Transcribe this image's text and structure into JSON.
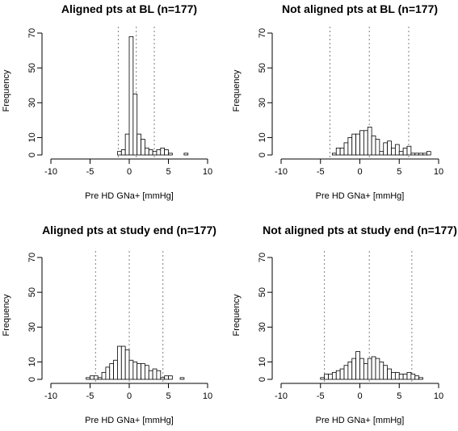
{
  "chart_data": [
    {
      "type": "bar",
      "title": "Aligned pts at BL (n=177)",
      "xlabel": "Pre HD GNa+ [mmHg]",
      "ylabel": "Frequency",
      "xlim": [
        -10,
        10
      ],
      "ylim": [
        0,
        70
      ],
      "xticks": [
        -10,
        -5,
        0,
        5,
        10
      ],
      "yticks": [
        0,
        10,
        30,
        50,
        70
      ],
      "grid": false,
      "bin_width": 0.5,
      "bins_start": [
        -1.5,
        -1.0,
        -0.5,
        0.0,
        0.5,
        1.0,
        1.5,
        2.0,
        2.5,
        3.0,
        3.5,
        4.0,
        4.5,
        5.0,
        5.5,
        6.0,
        6.5,
        7.0
      ],
      "counts": [
        2,
        3,
        12,
        68,
        35,
        12,
        9,
        4,
        3,
        2,
        3,
        4,
        3,
        1,
        0,
        0,
        0,
        1
      ],
      "reference_lines": [
        -1.4,
        0.9,
        3.2
      ]
    },
    {
      "type": "bar",
      "title": "Not aligned pts at BL (n=177)",
      "xlabel": "Pre HD GNa+ [mmHg]",
      "ylabel": "Frequency",
      "xlim": [
        -10,
        10
      ],
      "ylim": [
        0,
        70
      ],
      "xticks": [
        -10,
        -5,
        0,
        5,
        10
      ],
      "yticks": [
        0,
        10,
        30,
        50,
        70
      ],
      "grid": false,
      "bin_width": 0.5,
      "bins_start": [
        -3.5,
        -3.0,
        -2.5,
        -2.0,
        -1.5,
        -1.0,
        -0.5,
        0.0,
        0.5,
        1.0,
        1.5,
        2.0,
        2.5,
        3.0,
        3.5,
        4.0,
        4.5,
        5.0,
        5.5,
        6.0,
        6.5,
        7.0,
        7.5,
        8.0,
        8.5
      ],
      "counts": [
        1,
        4,
        4,
        7,
        10,
        12,
        12,
        14,
        14,
        16,
        11,
        9,
        2,
        7,
        8,
        4,
        6,
        2,
        4,
        5,
        1,
        1,
        1,
        1,
        2
      ],
      "reference_lines": [
        -3.8,
        1.2,
        6.2
      ]
    },
    {
      "type": "bar",
      "title": "Aligned pts at study end (n=177)",
      "xlabel": "Pre HD GNa+ [mmHg]",
      "ylabel": "Frequency",
      "xlim": [
        -10,
        10
      ],
      "ylim": [
        0,
        70
      ],
      "xticks": [
        -10,
        -5,
        0,
        5,
        10
      ],
      "yticks": [
        0,
        10,
        30,
        50,
        70
      ],
      "grid": false,
      "bin_width": 0.5,
      "bins_start": [
        -5.5,
        -5.0,
        -4.5,
        -4.0,
        -3.5,
        -3.0,
        -2.5,
        -2.0,
        -1.5,
        -1.0,
        -0.5,
        0.0,
        0.5,
        1.0,
        1.5,
        2.0,
        2.5,
        3.0,
        3.5,
        4.0,
        4.5,
        5.0,
        5.5,
        6.0,
        6.5
      ],
      "counts": [
        1,
        2,
        2,
        1,
        4,
        7,
        9,
        11,
        19,
        19,
        17,
        11,
        10,
        9,
        9,
        8,
        5,
        6,
        5,
        1,
        2,
        2,
        0,
        0,
        1
      ],
      "reference_lines": [
        -4.3,
        0.0,
        4.3
      ]
    },
    {
      "type": "bar",
      "title": "Not aligned pts at study end (n=177)",
      "xlabel": "Pre HD GNa+ [mmHg]",
      "ylabel": "Frequency",
      "xlim": [
        -10,
        10
      ],
      "ylim": [
        0,
        70
      ],
      "xticks": [
        -10,
        -5,
        0,
        5,
        10
      ],
      "yticks": [
        0,
        10,
        30,
        50,
        70
      ],
      "grid": false,
      "bin_width": 0.5,
      "bins_start": [
        -5.0,
        -4.5,
        -4.0,
        -3.5,
        -3.0,
        -2.5,
        -2.0,
        -1.5,
        -1.0,
        -0.5,
        0.0,
        0.5,
        1.0,
        1.5,
        2.0,
        2.5,
        3.0,
        3.5,
        4.0,
        4.5,
        5.0,
        5.5,
        6.0,
        6.5,
        7.0,
        7.5
      ],
      "counts": [
        1,
        3,
        3,
        4,
        5,
        6,
        8,
        10,
        12,
        16,
        12,
        9,
        12,
        13,
        12,
        10,
        8,
        6,
        4,
        4,
        3,
        3,
        4,
        3,
        2,
        1
      ],
      "reference_lines": [
        -4.5,
        1.2,
        6.6
      ]
    }
  ]
}
